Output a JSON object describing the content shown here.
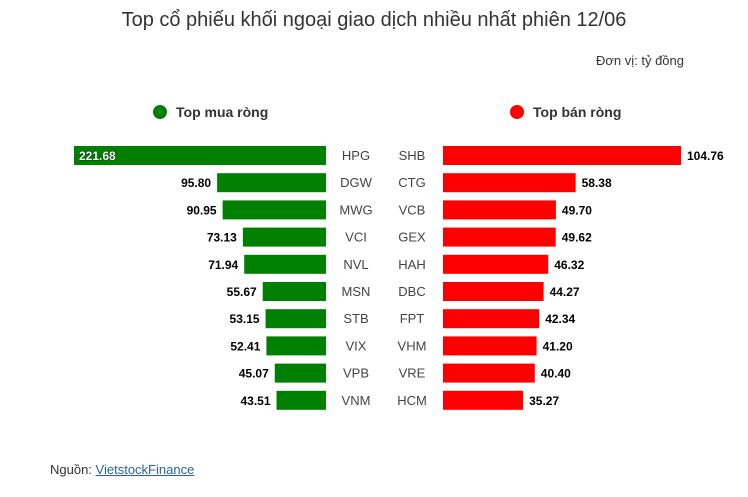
{
  "title": "Top cổ phiếu khối ngoại giao dịch nhiều nhất phiên 12/06",
  "unit": "Đơn vị: tỷ đồng",
  "source": {
    "label": "Nguồn:",
    "link_text": "VietstockFinance"
  },
  "colors": {
    "buy": "#008000",
    "sell": "#ff0000"
  },
  "chart_data": {
    "type": "bar",
    "title": "Top cổ phiếu khối ngoại giao dịch nhiều nhất phiên 12/06",
    "unit": "Đơn vị: tỷ đồng",
    "legend_placement": "top",
    "grid": false,
    "series": [
      {
        "name": "Top mua ròng",
        "color": "#008000",
        "direction": "left",
        "categories": [
          "HPG",
          "DGW",
          "MWG",
          "VCI",
          "NVL",
          "MSN",
          "STB",
          "VIX",
          "VPB",
          "VNM"
        ],
        "values": [
          221.68,
          95.8,
          90.95,
          73.13,
          71.94,
          55.67,
          53.15,
          52.41,
          45.07,
          43.51
        ]
      },
      {
        "name": "Top bán ròng",
        "color": "#ff0000",
        "direction": "right",
        "categories": [
          "SHB",
          "CTG",
          "VCB",
          "GEX",
          "HAH",
          "DBC",
          "FPT",
          "VHM",
          "VRE",
          "HCM"
        ],
        "values": [
          104.76,
          58.38,
          49.7,
          49.62,
          46.32,
          44.27,
          42.34,
          41.2,
          40.4,
          35.27
        ]
      }
    ]
  }
}
